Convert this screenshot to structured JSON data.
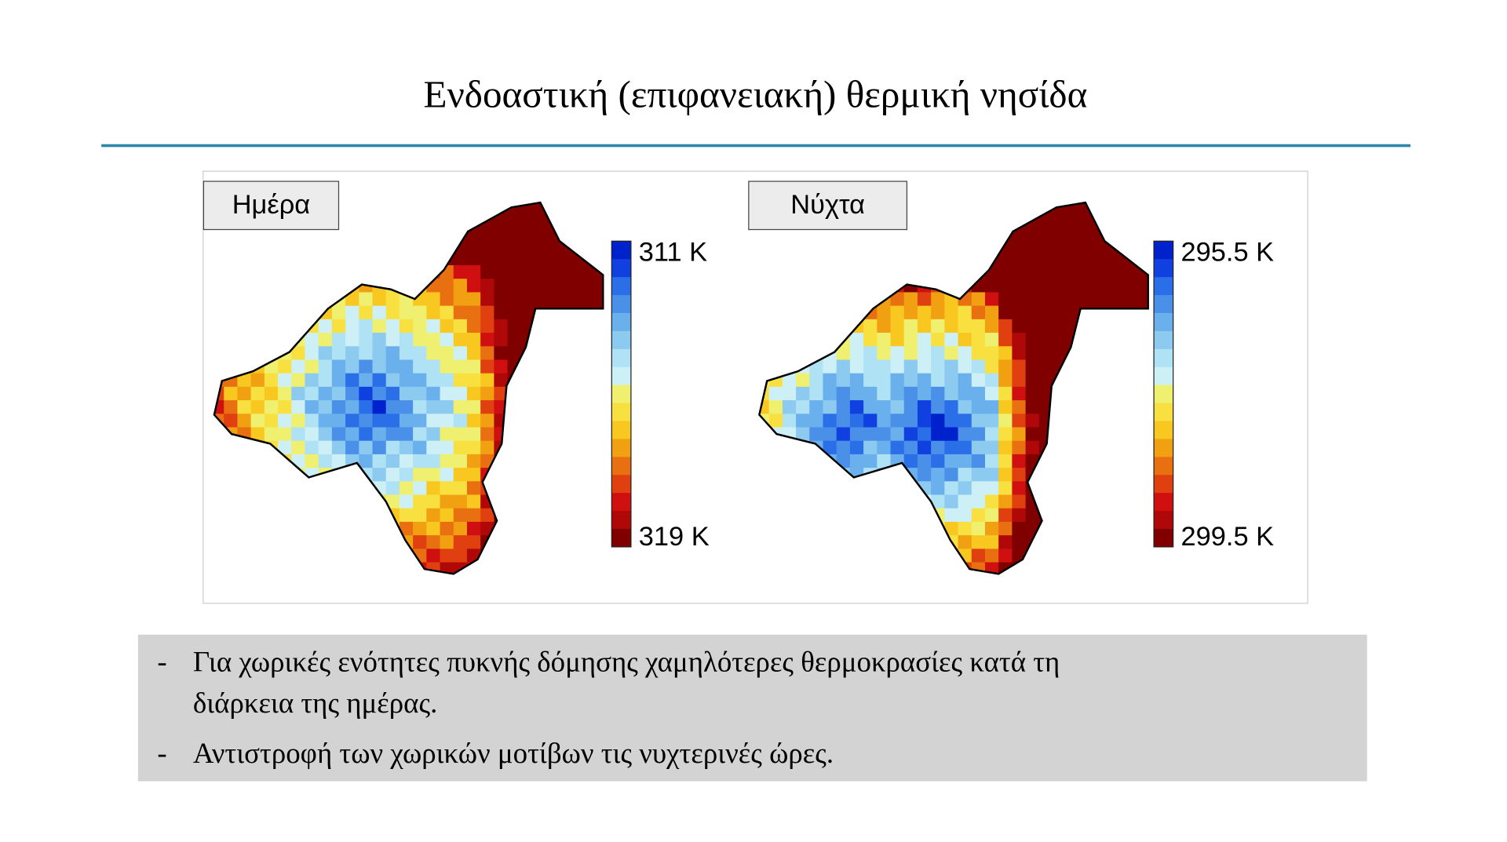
{
  "header": {
    "title": "Ενδοαστική (επιφανειακή) θερμική νησίδα"
  },
  "panels": [
    {
      "label": "Ημέρα",
      "colorbar": {
        "top": "311 K",
        "bottom": "319 K"
      }
    },
    {
      "label": "Νύχτα",
      "colorbar": {
        "top": "295.5 K",
        "bottom": "299.5 K"
      }
    }
  ],
  "notes": [
    {
      "marker": "-",
      "text": "Για χωρικές ενότητες πυκνής δόμησης χαμηλότερες θερμοκρασίες κατά τη",
      "text2": "διάρκεια της ημέρας."
    },
    {
      "marker": "-",
      "text": "Αντιστροφή των χωρικών μοτίβων τις νυχτερινές ώρες."
    }
  ]
}
